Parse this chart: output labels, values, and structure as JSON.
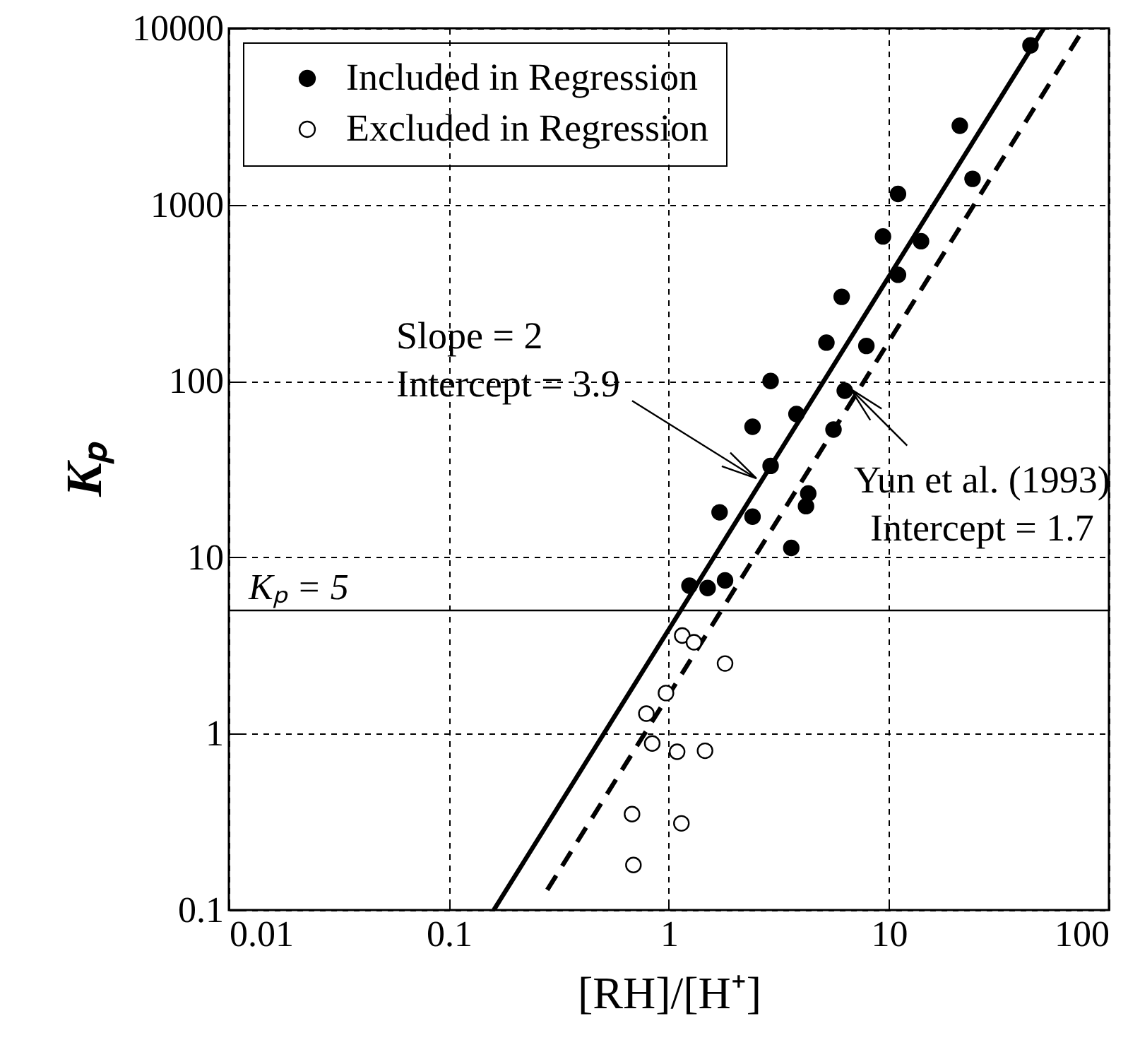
{
  "chart_data": {
    "type": "scatter",
    "xlabel": "[RH]/[H⁺]",
    "ylabel": "Kₚ",
    "log": "xy",
    "grid": true,
    "legend": "top left",
    "xlim": [
      0.01,
      100
    ],
    "xticks": [
      0.01,
      0.1,
      1,
      10,
      100
    ],
    "ylim": [
      0.1,
      10000
    ],
    "yticks": [
      0.1,
      1,
      10,
      100,
      1000,
      10000
    ],
    "series": [
      {
        "name": "Included in Regression",
        "marker": "circle",
        "color": "#000000",
        "x": [
          44,
          21,
          24,
          11,
          9.4,
          14,
          11,
          6.1,
          5.2,
          7.9,
          2.9,
          6.3,
          3.8,
          2.4,
          5.6,
          2.9,
          4.3,
          4.2,
          1.7,
          2.4,
          3.6,
          1.24,
          1.5,
          1.8
        ],
        "values": [
          8000,
          2800,
          1400,
          1150,
          660,
          620,
          400,
          300,
          165,
          158,
          100,
          88,
          65,
          55,
          53,
          33,
          23,
          19.5,
          18,
          17,
          11.3,
          6.9,
          6.7,
          7.4
        ]
      },
      {
        "name": "Excluded in Regression",
        "marker": "circle",
        "color": "#ffffff",
        "x": [
          1.15,
          1.3,
          1.8,
          0.97,
          0.79,
          0.84,
          1.09,
          1.46,
          0.68,
          1.14,
          0.69
        ],
        "values": [
          3.6,
          3.3,
          2.5,
          1.7,
          1.3,
          0.88,
          0.79,
          0.8,
          0.35,
          0.31,
          0.18
        ]
      },
      {
        "type": "line",
        "color": "#000000",
        "line_style": "solid",
        "x": [
          0.16,
          50.6
        ],
        "values": [
          0.1,
          10000
        ]
      },
      {
        "type": "line",
        "color": "#000000",
        "line_style": "dashed",
        "x": [
          0.28,
          77
        ],
        "values": [
          0.13,
          10000
        ]
      }
    ],
    "ref_lines": [
      {
        "axis": "y",
        "value": 5,
        "label": "Kₚ = 5"
      }
    ],
    "annotations": [
      {
        "text": "Slope = 2\nIntercept = 3.9",
        "x": 2.5,
        "y": 28
      },
      {
        "text": "Yun et al. (1993)\nIntercept = 1.7",
        "x": 6.7,
        "y": 90
      }
    ]
  }
}
